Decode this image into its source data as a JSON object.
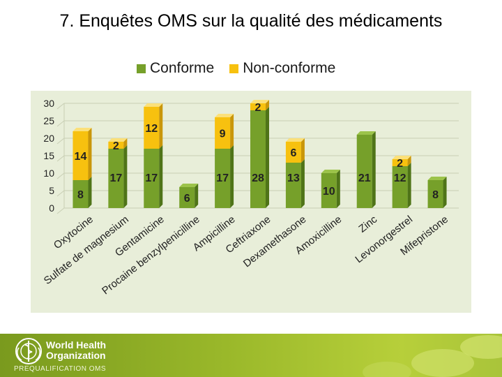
{
  "title": "7. Enquêtes OMS sur la qualité des médicaments",
  "footer": {
    "org_name": "World Health Organization",
    "program": "PREQUALIFICATION OMS",
    "logo_icon": "who-emblem-icon"
  },
  "colors": {
    "conforme": "#76a02a",
    "non_conforme": "#f7c10f",
    "plot_bg": "#e8eed9",
    "footer": "#9ab82a"
  },
  "chart_data": {
    "type": "bar",
    "stacked": true,
    "categories": [
      "Oxytocine",
      "Sulfate de magnesium",
      "Gentamicine",
      "Procaine benzylpenicilline",
      "Ampicilline",
      "Ceftriaxone",
      "Dexamethasone",
      "Amoxicilline",
      "Zinc",
      "Levonorgestrel",
      "Mifepristone"
    ],
    "series": [
      {
        "name": "Conforme",
        "values": [
          8,
          17,
          17,
          6,
          17,
          28,
          13,
          10,
          21,
          12,
          8
        ]
      },
      {
        "name": "Non-conforme",
        "values": [
          14,
          2,
          12,
          0,
          9,
          2,
          6,
          0,
          0,
          2,
          0
        ]
      }
    ],
    "y_ticks": [
      "0",
      "5",
      "10",
      "15",
      "20",
      "25",
      "30"
    ],
    "ylim": [
      0,
      30
    ],
    "grid": true,
    "legend_position": "top"
  }
}
